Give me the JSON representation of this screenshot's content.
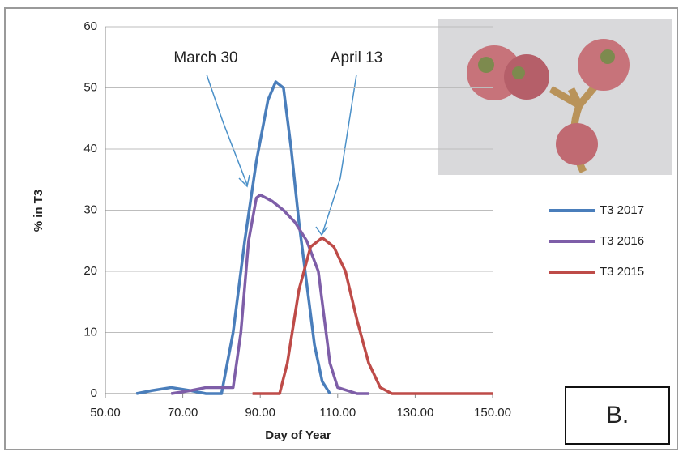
{
  "chart_data": {
    "type": "line",
    "x_label": "Day of Year",
    "y_label": "% in T3",
    "annotations": [
      "March 30",
      "April 13"
    ],
    "panel_label": "B.",
    "xlim": [
      50,
      150
    ],
    "ylim": [
      0,
      60
    ],
    "xticks": [
      {
        "value": 50,
        "label": "50.00"
      },
      {
        "value": 70,
        "label": "70.00"
      },
      {
        "value": 90,
        "label": "90.00"
      },
      {
        "value": 110,
        "label": "110.00"
      },
      {
        "value": 130,
        "label": "130.00"
      },
      {
        "value": 150,
        "label": "150.00"
      }
    ],
    "yticks": [
      0,
      10,
      20,
      30,
      40,
      50,
      60
    ],
    "grid": true,
    "legend": "right",
    "series": [
      {
        "name": "T3 2017",
        "color": "#4a7ebb",
        "x": [
          58,
          62,
          67,
          72,
          76,
          80,
          83,
          86,
          89,
          92,
          94,
          96,
          98,
          100,
          102,
          104,
          106,
          108
        ],
        "values": [
          0,
          0.5,
          1,
          0.5,
          0,
          0,
          10,
          25,
          38,
          48,
          51,
          50,
          40,
          28,
          18,
          8,
          2,
          0
        ]
      },
      {
        "name": "T3 2016",
        "color": "#7e5ea8",
        "x": [
          67,
          72,
          76,
          80,
          83,
          85,
          87,
          89,
          90,
          93,
          96,
          99,
          102,
          105,
          108,
          110,
          115,
          118
        ],
        "values": [
          0,
          0.5,
          1,
          1,
          1,
          10,
          25,
          32,
          32.5,
          31.5,
          30,
          28,
          25,
          20,
          5,
          1,
          0,
          0
        ]
      },
      {
        "name": "T3 2015",
        "color": "#be4b48",
        "x": [
          88,
          95,
          97,
          100,
          103,
          106,
          109,
          112,
          115,
          118,
          121,
          124,
          150
        ],
        "values": [
          0,
          0,
          5,
          17,
          24,
          25.5,
          24,
          20,
          12,
          5,
          1,
          0,
          0
        ]
      }
    ]
  }
}
